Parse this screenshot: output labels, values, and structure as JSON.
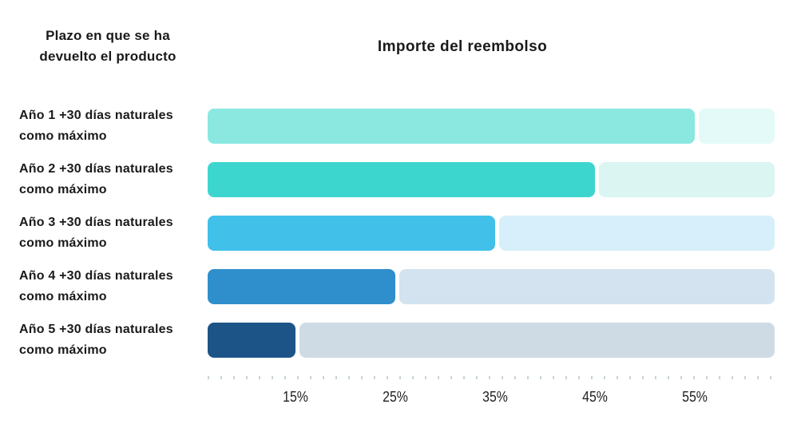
{
  "chart_data": {
    "type": "bar",
    "orientation": "horizontal",
    "title": "Importe del reembolso",
    "row_axis_title": "Plazo en que se ha devuelto el producto",
    "categories": [
      "Año 1 +30 días naturales como máximo",
      "Año 2 +30 días naturales como máximo",
      "Año 3 +30 días naturales como máximo",
      "Año 4 +30 días naturales como máximo",
      "Año 5 +30 días naturales como máximo"
    ],
    "category_lines": [
      [
        "Año 1 +30 días naturales",
        "como máximo"
      ],
      [
        "Año 2 +30 días naturales",
        "como máximo"
      ],
      [
        "Año 3 +30 días naturales",
        "como máximo"
      ],
      [
        "Año 4 +30 días naturales",
        "como máximo"
      ],
      [
        "Año 5 +30 días naturales",
        "como máximo"
      ]
    ],
    "values": [
      55,
      45,
      35,
      25,
      15
    ],
    "unit": "%",
    "x_ticks": [
      15,
      25,
      35,
      45,
      55
    ],
    "x_tick_labels": [
      "15%",
      "25%",
      "35%",
      "45%",
      "55%"
    ],
    "axis_min": 6.2,
    "axis_max": 63,
    "grid": false,
    "legend": false,
    "bar_colors": [
      "#8AE8E1",
      "#3DD6CE",
      "#41C0E9",
      "#2F8FCC",
      "#1C5488"
    ],
    "track_colors": [
      "#E3FAF8",
      "#DBF5F2",
      "#D7EFFA",
      "#D3E3F0",
      "#CFDBE4"
    ],
    "tick_mark_color": "#C8D4D4",
    "text_color": "#1A1A1A"
  }
}
